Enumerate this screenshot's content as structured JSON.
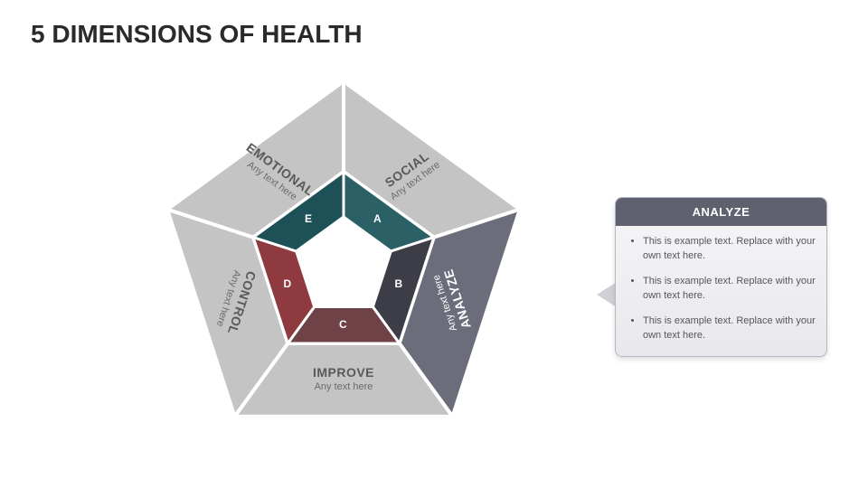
{
  "title": "5 DIMENSIONS OF HEALTH",
  "diagram": {
    "type": "infographic",
    "shape": "pentagon-ring",
    "background_color": "#ffffff",
    "outer_ring": {
      "fill_default": "#c4c4c4",
      "fill_active": "#6c6d7b",
      "stroke": "#ffffff",
      "stroke_width": 4,
      "label_title_fontsize": 14,
      "label_title_color": "#595959",
      "label_title_color_active": "#ffffff",
      "label_sub_fontsize": 11,
      "label_sub_color": "#6b6b6b",
      "segments": [
        {
          "id": "A",
          "title": "SOCIAL",
          "subtitle": "Any text here",
          "active": false,
          "angle_deg": -18
        },
        {
          "id": "B",
          "title": "ANALYZE",
          "subtitle": "Any text here",
          "active": true,
          "angle_deg": 54
        },
        {
          "id": "C",
          "title": "IMPROVE",
          "subtitle": "Any text here",
          "active": false,
          "angle_deg": 126
        },
        {
          "id": "D",
          "title": "CONTROL",
          "subtitle": "Any text here",
          "active": false,
          "angle_deg": 198
        },
        {
          "id": "E",
          "title": "EMOTIONAL",
          "subtitle": "Any text here",
          "active": false,
          "angle_deg": 270
        }
      ]
    },
    "inner_ring": {
      "stroke": "#ffffff",
      "stroke_width": 3,
      "letter_fontsize": 12,
      "letter_color": "#ffffff",
      "center_fill": "#ffffff",
      "segments": [
        {
          "letter": "A",
          "fill": "#2b6166"
        },
        {
          "letter": "B",
          "fill": "#3d3d47"
        },
        {
          "letter": "C",
          "fill": "#6e4247"
        },
        {
          "letter": "D",
          "fill": "#8e3a3f"
        },
        {
          "letter": "E",
          "fill": "#1d5157"
        }
      ]
    }
  },
  "callout": {
    "header": "ANALYZE",
    "header_bg": "#60616f",
    "header_color": "#ffffff",
    "body_bg_top": "#f6f6f8",
    "body_bg_bottom": "#e8e8ec",
    "border_color": "#b7b7bf",
    "bullet_fontsize": 11,
    "bullet_color": "#555560",
    "bullets": [
      "This is example text. Replace with your own text here.",
      "This is example text. Replace with your own text here.",
      "This is example text. Replace with your own text here."
    ]
  }
}
